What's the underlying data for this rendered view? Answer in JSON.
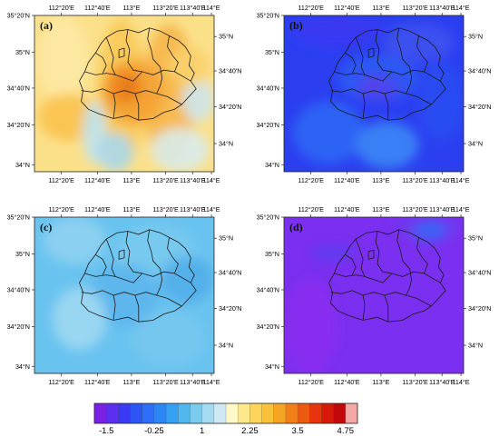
{
  "panels": [
    {
      "id": "a",
      "label": "(a)",
      "palette": "warm"
    },
    {
      "id": "b",
      "label": "(b)",
      "palette": "blue"
    },
    {
      "id": "c",
      "label": "(c)",
      "palette": "sky"
    },
    {
      "id": "d",
      "label": "(d)",
      "palette": "purple"
    }
  ],
  "axes": {
    "top_lon_ticks": [
      "112°20'E",
      "112°40'E",
      "113°E",
      "113°20'E",
      "113°40'E",
      "114°E"
    ],
    "bottom_lon_ticks": [
      "112°20'E",
      "112°40'E",
      "113°E",
      "113°20'E",
      "113°40'E",
      "114°E"
    ],
    "left_lat_ticks": [
      "35°20'N",
      "35°N",
      "34°40'N",
      "34°20'N",
      "34°N"
    ],
    "right_lat_ticks": [
      "35°N",
      "34°40'N",
      "34°20'N",
      "34°N"
    ]
  },
  "colorbar": {
    "labels": [
      "-1.5",
      "-0.25",
      "1",
      "2.25",
      "3.5",
      "4.75"
    ],
    "colors": [
      "#7a1fe8",
      "#5b2ef0",
      "#3a3af5",
      "#2d55f6",
      "#2f6ef7",
      "#2e86f5",
      "#36a0f2",
      "#52b7ee",
      "#7acbee",
      "#a5dbf1",
      "#cfe9f4",
      "#fff9c8",
      "#fde98b",
      "#fbd65a",
      "#f9c23a",
      "#f6a424",
      "#f28018",
      "#ee5a12",
      "#e8340e",
      "#d9180c",
      "#c2080a",
      "#f3a7a7"
    ]
  }
}
